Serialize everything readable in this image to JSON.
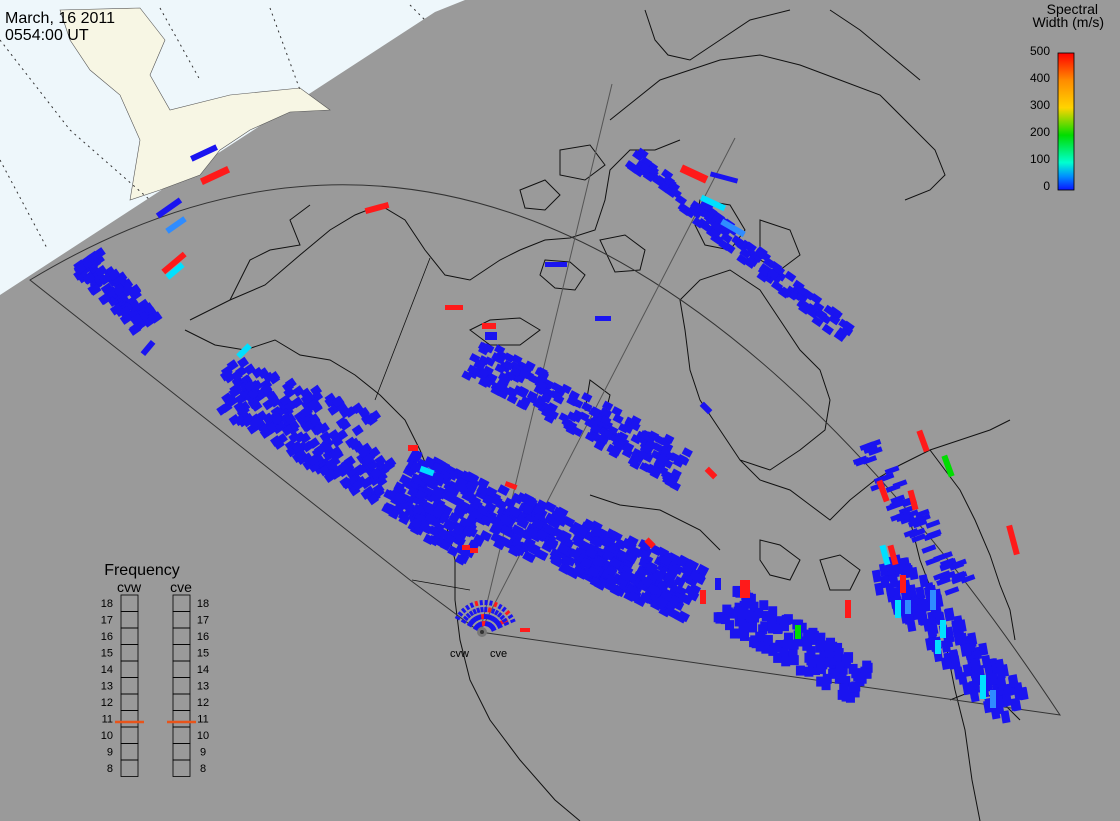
{
  "header": {
    "date": "March, 16 2011",
    "time": "0554:00 UT"
  },
  "colorbar": {
    "title_line1": "Spectral",
    "title_line2": "Width (m/s)",
    "ticks": [
      "500",
      "400",
      "300",
      "200",
      "100",
      "0"
    ],
    "stops": [
      "#ff0000",
      "#ff8c00",
      "#ffd400",
      "#00dd00",
      "#00ffd0",
      "#0090ff",
      "#0a14ff"
    ]
  },
  "frequency_panel": {
    "title": "Frequency",
    "radars": [
      {
        "name": "cvw",
        "value_mhz": 10.8
      },
      {
        "name": "cve",
        "value_mhz": 10.8
      }
    ],
    "scale": [
      "18",
      "17",
      "16",
      "15",
      "14",
      "13",
      "12",
      "11",
      "10",
      "9",
      "8"
    ]
  },
  "site_labels": {
    "west": "cvw",
    "east": "cve"
  },
  "colors": {
    "background": "#9a9a9a",
    "daylight_region": "#eef7fb",
    "land_highlight": "#f7f6e4",
    "low_width": "#1a14f0",
    "cyan": "#00e0ff",
    "light_blue": "#2f8cff",
    "green": "#00dd00",
    "red": "#ff1a1a",
    "freq_marker": "#e8541a"
  }
}
